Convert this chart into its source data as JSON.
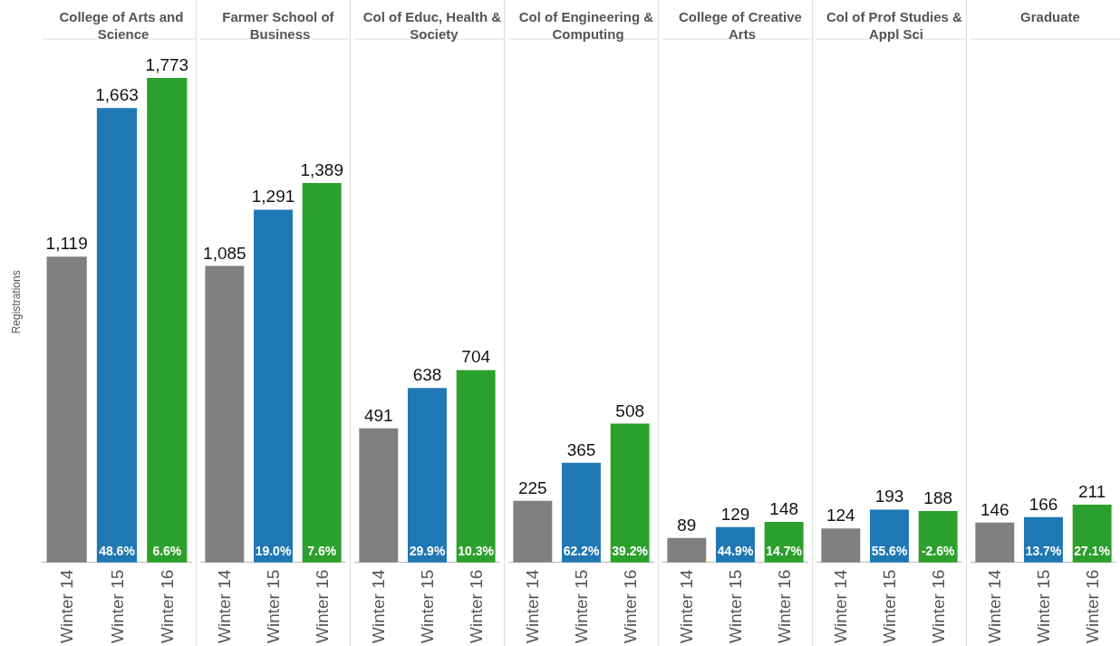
{
  "chart_data": [
    {
      "type": "bar",
      "title": "College of Arts and Science",
      "ylabel": "Registrations",
      "categories": [
        "Winter 14",
        "Winter 15",
        "Winter 16"
      ],
      "values": [
        1119,
        1663,
        1773
      ],
      "value_labels": [
        "1,119",
        "1,663",
        "1,773"
      ],
      "colors": [
        "#808080",
        "#1f77b4",
        "#2ca02c"
      ],
      "data_labels": true,
      "annotations": [
        {
          "text": "48.6%",
          "x": "Winter 15",
          "y": 0
        },
        {
          "text": "6.6%",
          "x": "Winter 16",
          "y": 0
        }
      ]
    },
    {
      "type": "bar",
      "title": "Farmer School of Business",
      "categories": [
        "Winter 14",
        "Winter 15",
        "Winter 16"
      ],
      "values": [
        1085,
        1291,
        1389
      ],
      "value_labels": [
        "1,085",
        "1,291",
        "1,389"
      ],
      "colors": [
        "#808080",
        "#1f77b4",
        "#2ca02c"
      ],
      "data_labels": true,
      "annotations": [
        {
          "text": "19.0%",
          "x": "Winter 15",
          "y": 0
        },
        {
          "text": "7.6%",
          "x": "Winter 16",
          "y": 0
        }
      ]
    },
    {
      "type": "bar",
      "title": "Col of Educ, Health & Society",
      "categories": [
        "Winter 14",
        "Winter 15",
        "Winter 16"
      ],
      "values": [
        491,
        638,
        704
      ],
      "colors": [
        "#808080",
        "#1f77b4",
        "#2ca02c"
      ],
      "data_labels": true,
      "annotations": [
        {
          "text": "29.9%",
          "x": "Winter 15",
          "y": 0
        },
        {
          "text": "10.3%",
          "x": "Winter 16",
          "y": 0
        }
      ]
    },
    {
      "type": "bar",
      "title": "Col of Engineering & Computing",
      "categories": [
        "Winter 14",
        "Winter 15",
        "Winter 16"
      ],
      "values": [
        225,
        365,
        508
      ],
      "colors": [
        "#808080",
        "#1f77b4",
        "#2ca02c"
      ],
      "data_labels": true,
      "annotations": [
        {
          "text": "62.2%",
          "x": "Winter 15",
          "y": 0
        },
        {
          "text": "39.2%",
          "x": "Winter 16",
          "y": 0
        }
      ]
    },
    {
      "type": "bar",
      "title": "College of Creative Arts",
      "categories": [
        "Winter 14",
        "Winter 15",
        "Winter 16"
      ],
      "values": [
        89,
        129,
        148
      ],
      "colors": [
        "#808080",
        "#1f77b4",
        "#2ca02c"
      ],
      "data_labels": true,
      "annotations": [
        {
          "text": "44.9%",
          "x": "Winter 15",
          "y": 0
        },
        {
          "text": "14.7%",
          "x": "Winter 16",
          "y": 0
        }
      ]
    },
    {
      "type": "bar",
      "title": "Col of Prof Studies & Appl Sci",
      "categories": [
        "Winter 14",
        "Winter 15",
        "Winter 16"
      ],
      "values": [
        124,
        193,
        188
      ],
      "colors": [
        "#808080",
        "#1f77b4",
        "#2ca02c"
      ],
      "data_labels": true,
      "annotations": [
        {
          "text": "55.6%",
          "x": "Winter 15",
          "y": 0
        },
        {
          "text": "-2.6%",
          "x": "Winter 16",
          "y": 0
        }
      ]
    },
    {
      "type": "bar",
      "title": "Graduate",
      "categories": [
        "Winter 14",
        "Winter 15",
        "Winter 16"
      ],
      "values": [
        146,
        166,
        211
      ],
      "colors": [
        "#808080",
        "#1f77b4",
        "#2ca02c"
      ],
      "data_labels": true,
      "annotations": [
        {
          "text": "13.7%",
          "x": "Winter 15",
          "y": 0
        },
        {
          "text": "27.1%",
          "x": "Winter 16",
          "y": 0
        }
      ]
    }
  ]
}
